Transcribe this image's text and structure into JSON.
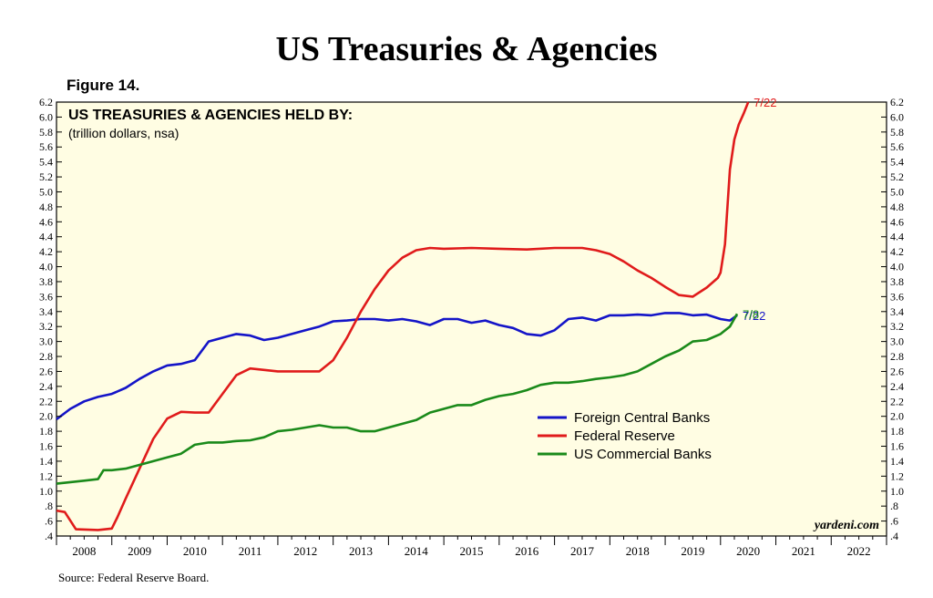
{
  "page": {
    "title": "US Treasuries & Agencies",
    "figure_label": "Figure 14.",
    "source": "Source: Federal Reserve Board."
  },
  "chart_data": {
    "type": "line",
    "title": "US TREASURIES & AGENCIES HELD BY:",
    "subtitle": "(trillion dollars, nsa)",
    "watermark": "yardeni.com",
    "background": "#fffde3",
    "xlim": [
      2008,
      2023
    ],
    "ylim": [
      0.4,
      6.2
    ],
    "x_ticks": [
      "2008",
      "2009",
      "2010",
      "2011",
      "2012",
      "2013",
      "2014",
      "2015",
      "2016",
      "2017",
      "2018",
      "2019",
      "2020",
      "2021",
      "2022"
    ],
    "y_ticks": [
      ".4",
      ".6",
      ".8",
      "1.0",
      "1.2",
      "1.4",
      "1.6",
      "1.8",
      "2.0",
      "2.2",
      "2.4",
      "2.6",
      "2.8",
      "3.0",
      "3.2",
      "3.4",
      "3.6",
      "3.8",
      "4.0",
      "4.2",
      "4.4",
      "4.6",
      "4.8",
      "5.0",
      "5.2",
      "5.4",
      "5.6",
      "5.8",
      "6.0",
      "6.2"
    ],
    "legend_position": "lower-right",
    "series": [
      {
        "name": "Foreign Central Banks",
        "color": "#1414c8",
        "end_label": "7/22",
        "points": [
          [
            2008.0,
            1.96
          ],
          [
            2008.25,
            2.1
          ],
          [
            2008.5,
            2.2
          ],
          [
            2008.75,
            2.26
          ],
          [
            2009.0,
            2.3
          ],
          [
            2009.25,
            2.38
          ],
          [
            2009.5,
            2.5
          ],
          [
            2009.75,
            2.6
          ],
          [
            2010.0,
            2.68
          ],
          [
            2010.25,
            2.7
          ],
          [
            2010.5,
            2.75
          ],
          [
            2010.75,
            3.0
          ],
          [
            2011.0,
            3.05
          ],
          [
            2011.25,
            3.1
          ],
          [
            2011.5,
            3.08
          ],
          [
            2011.75,
            3.02
          ],
          [
            2012.0,
            3.05
          ],
          [
            2012.25,
            3.1
          ],
          [
            2012.5,
            3.15
          ],
          [
            2012.75,
            3.2
          ],
          [
            2013.0,
            3.27
          ],
          [
            2013.25,
            3.28
          ],
          [
            2013.5,
            3.3
          ],
          [
            2013.75,
            3.3
          ],
          [
            2014.0,
            3.28
          ],
          [
            2014.25,
            3.3
          ],
          [
            2014.5,
            3.27
          ],
          [
            2014.75,
            3.22
          ],
          [
            2015.0,
            3.3
          ],
          [
            2015.25,
            3.3
          ],
          [
            2015.5,
            3.25
          ],
          [
            2015.75,
            3.28
          ],
          [
            2016.0,
            3.22
          ],
          [
            2016.25,
            3.18
          ],
          [
            2016.5,
            3.1
          ],
          [
            2016.75,
            3.08
          ],
          [
            2017.0,
            3.15
          ],
          [
            2017.25,
            3.3
          ],
          [
            2017.5,
            3.32
          ],
          [
            2017.75,
            3.28
          ],
          [
            2018.0,
            3.35
          ],
          [
            2018.25,
            3.35
          ],
          [
            2018.5,
            3.36
          ],
          [
            2018.75,
            3.35
          ],
          [
            2019.0,
            3.38
          ],
          [
            2019.25,
            3.38
          ],
          [
            2019.5,
            3.35
          ],
          [
            2019.75,
            3.36
          ],
          [
            2020.0,
            3.3
          ],
          [
            2020.17,
            3.28
          ],
          [
            2020.3,
            3.35
          ]
        ]
      },
      {
        "name": "Federal Reserve",
        "color": "#e01b1b",
        "end_label": "7/22",
        "points": [
          [
            2008.0,
            0.74
          ],
          [
            2008.15,
            0.72
          ],
          [
            2008.35,
            0.49
          ],
          [
            2008.75,
            0.48
          ],
          [
            2009.0,
            0.5
          ],
          [
            2009.1,
            0.65
          ],
          [
            2009.25,
            0.9
          ],
          [
            2009.5,
            1.3
          ],
          [
            2009.75,
            1.7
          ],
          [
            2010.0,
            1.97
          ],
          [
            2010.25,
            2.06
          ],
          [
            2010.5,
            2.05
          ],
          [
            2010.75,
            2.05
          ],
          [
            2011.0,
            2.3
          ],
          [
            2011.25,
            2.55
          ],
          [
            2011.5,
            2.64
          ],
          [
            2011.75,
            2.62
          ],
          [
            2012.0,
            2.6
          ],
          [
            2012.5,
            2.6
          ],
          [
            2012.75,
            2.6
          ],
          [
            2013.0,
            2.75
          ],
          [
            2013.25,
            3.05
          ],
          [
            2013.5,
            3.4
          ],
          [
            2013.75,
            3.7
          ],
          [
            2014.0,
            3.95
          ],
          [
            2014.25,
            4.12
          ],
          [
            2014.5,
            4.22
          ],
          [
            2014.75,
            4.25
          ],
          [
            2015.0,
            4.24
          ],
          [
            2015.5,
            4.25
          ],
          [
            2016.0,
            4.24
          ],
          [
            2016.5,
            4.23
          ],
          [
            2017.0,
            4.25
          ],
          [
            2017.5,
            4.25
          ],
          [
            2017.75,
            4.22
          ],
          [
            2018.0,
            4.17
          ],
          [
            2018.25,
            4.07
          ],
          [
            2018.5,
            3.95
          ],
          [
            2018.75,
            3.85
          ],
          [
            2019.0,
            3.73
          ],
          [
            2019.25,
            3.62
          ],
          [
            2019.5,
            3.6
          ],
          [
            2019.75,
            3.72
          ],
          [
            2019.95,
            3.85
          ],
          [
            2020.0,
            3.92
          ],
          [
            2020.08,
            4.3
          ],
          [
            2020.17,
            5.3
          ],
          [
            2020.25,
            5.7
          ],
          [
            2020.33,
            5.9
          ],
          [
            2020.42,
            6.05
          ],
          [
            2020.5,
            6.2
          ]
        ]
      },
      {
        "name": "US Commercial Banks",
        "color": "#1a8a1a",
        "end_label": "7/8",
        "points": [
          [
            2008.0,
            1.1
          ],
          [
            2008.25,
            1.12
          ],
          [
            2008.5,
            1.14
          ],
          [
            2008.75,
            1.16
          ],
          [
            2008.85,
            1.28
          ],
          [
            2009.0,
            1.28
          ],
          [
            2009.25,
            1.3
          ],
          [
            2009.5,
            1.35
          ],
          [
            2009.75,
            1.4
          ],
          [
            2010.0,
            1.45
          ],
          [
            2010.25,
            1.5
          ],
          [
            2010.5,
            1.62
          ],
          [
            2010.75,
            1.65
          ],
          [
            2011.0,
            1.65
          ],
          [
            2011.25,
            1.67
          ],
          [
            2011.5,
            1.68
          ],
          [
            2011.75,
            1.72
          ],
          [
            2012.0,
            1.8
          ],
          [
            2012.25,
            1.82
          ],
          [
            2012.5,
            1.85
          ],
          [
            2012.75,
            1.88
          ],
          [
            2013.0,
            1.85
          ],
          [
            2013.25,
            1.85
          ],
          [
            2013.5,
            1.8
          ],
          [
            2013.75,
            1.8
          ],
          [
            2014.0,
            1.85
          ],
          [
            2014.25,
            1.9
          ],
          [
            2014.5,
            1.95
          ],
          [
            2014.75,
            2.05
          ],
          [
            2015.0,
            2.1
          ],
          [
            2015.25,
            2.15
          ],
          [
            2015.5,
            2.15
          ],
          [
            2015.75,
            2.22
          ],
          [
            2016.0,
            2.27
          ],
          [
            2016.25,
            2.3
          ],
          [
            2016.5,
            2.35
          ],
          [
            2016.75,
            2.42
          ],
          [
            2017.0,
            2.45
          ],
          [
            2017.25,
            2.45
          ],
          [
            2017.5,
            2.47
          ],
          [
            2017.75,
            2.5
          ],
          [
            2018.0,
            2.52
          ],
          [
            2018.25,
            2.55
          ],
          [
            2018.5,
            2.6
          ],
          [
            2018.75,
            2.7
          ],
          [
            2019.0,
            2.8
          ],
          [
            2019.25,
            2.88
          ],
          [
            2019.5,
            3.0
          ],
          [
            2019.75,
            3.02
          ],
          [
            2020.0,
            3.1
          ],
          [
            2020.17,
            3.2
          ],
          [
            2020.3,
            3.37
          ]
        ]
      }
    ]
  }
}
